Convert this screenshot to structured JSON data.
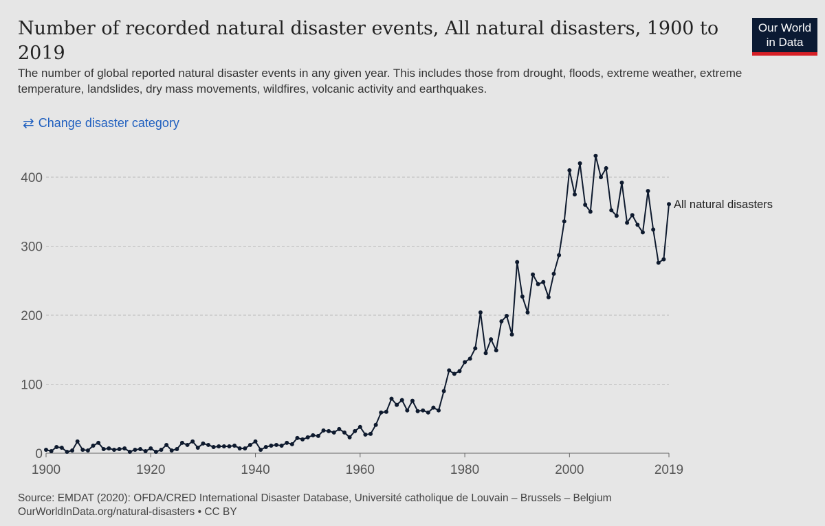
{
  "header": {
    "title": "Number of recorded natural disaster events, All natural disasters, 1900 to 2019",
    "subtitle": "The number of global reported natural disaster events in any given year. This includes those from drought, floods, extreme weather, extreme temperature, landslides, dry mass movements, wildfires, volcanic activity and earthquakes.",
    "change_button_label": "Change disaster category",
    "change_button_icon": "swap-arrows-icon",
    "logo_line1": "Our World",
    "logo_line2": "in Data"
  },
  "footer": {
    "source": "Source: EMDAT (2020): OFDA/CRED International Disaster Database, Université catholique de Louvain – Brussels – Belgium",
    "url_license": "OurWorldInData.org/natural-disasters • CC BY"
  },
  "colors": {
    "background": "#e6e6e6",
    "line": "#0e1a2e",
    "grid": "#bbbbbb",
    "accent": "#1f5fbf",
    "logo_bg": "#0b1a33",
    "logo_bar": "#d61f26"
  },
  "chart_data": {
    "type": "line",
    "title": "Number of recorded natural disaster events, All natural disasters, 1900 to 2019",
    "xlabel": "",
    "ylabel": "",
    "xlim": [
      1900,
      2019
    ],
    "ylim": [
      0,
      400
    ],
    "yticks": [
      0,
      100,
      200,
      300,
      400
    ],
    "xticks": [
      1900,
      1920,
      1940,
      1960,
      1980,
      2000,
      2019
    ],
    "grid": "horizontal-dashed",
    "series": [
      {
        "name": "All natural disasters",
        "x": [
          1900,
          1901,
          1902,
          1903,
          1904,
          1905,
          1906,
          1907,
          1908,
          1909,
          1910,
          1911,
          1912,
          1913,
          1914,
          1915,
          1916,
          1917,
          1918,
          1919,
          1920,
          1921,
          1922,
          1923,
          1924,
          1925,
          1926,
          1927,
          1928,
          1929,
          1930,
          1931,
          1932,
          1933,
          1934,
          1935,
          1936,
          1937,
          1938,
          1939,
          1940,
          1941,
          1942,
          1943,
          1944,
          1945,
          1946,
          1947,
          1948,
          1949,
          1950,
          1951,
          1952,
          1953,
          1954,
          1955,
          1956,
          1957,
          1958,
          1959,
          1960,
          1961,
          1962,
          1963,
          1964,
          1965,
          1966,
          1967,
          1968,
          1969,
          1970,
          1971,
          1972,
          1973,
          1974,
          1975,
          1976,
          1977,
          1978,
          1979,
          1980,
          1981,
          1982,
          1983,
          1984,
          1985,
          1986,
          1987,
          1988,
          1989,
          1990,
          1991,
          1992,
          1993,
          1994,
          1995,
          1996,
          1997,
          1998,
          1999,
          2000,
          2001,
          2002,
          2003,
          2004,
          2005,
          2006,
          2007,
          2008,
          2009,
          2010,
          2011,
          2012,
          2013,
          2014,
          2015,
          2016,
          2017,
          2018,
          2019
        ],
        "values": [
          5,
          3,
          9,
          8,
          2,
          4,
          17,
          5,
          4,
          11,
          15,
          6,
          7,
          5,
          6,
          7,
          2,
          5,
          6,
          3,
          7,
          2,
          5,
          12,
          4,
          6,
          15,
          12,
          17,
          8,
          14,
          12,
          9,
          10,
          10,
          10,
          11,
          7,
          7,
          12,
          17,
          5,
          9,
          11,
          12,
          11,
          15,
          13,
          22,
          20,
          23,
          26,
          25,
          33,
          32,
          30,
          35,
          30,
          23,
          32,
          38,
          27,
          28,
          41,
          59,
          60,
          79,
          70,
          77,
          62,
          76,
          61,
          62,
          59,
          66,
          62,
          90,
          120,
          115,
          119,
          132,
          137,
          152,
          204,
          145,
          165,
          149,
          191,
          199,
          172,
          277,
          227,
          204,
          259,
          245,
          248,
          226,
          260,
          287,
          336,
          410,
          375,
          420,
          360,
          350,
          431,
          400,
          413,
          352,
          344,
          392,
          334,
          345,
          331,
          320,
          380,
          324,
          276,
          281,
          361
        ]
      }
    ]
  }
}
